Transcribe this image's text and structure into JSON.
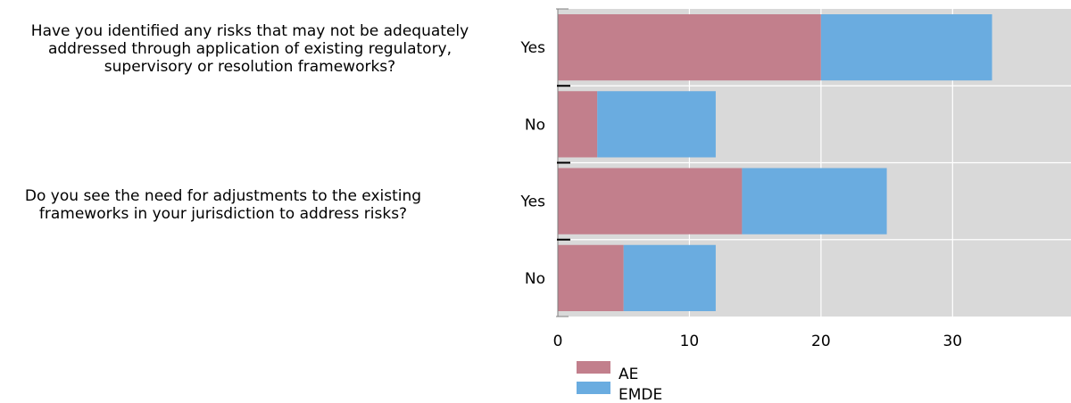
{
  "chart_data": {
    "type": "bar",
    "orientation": "horizontal",
    "stacked": true,
    "groups": [
      {
        "question_lines": [
          "Have you identified any risks that may not be adequately",
          "addressed through application of existing regulatory,",
          "supervisory or resolution frameworks?"
        ],
        "categories": [
          "Yes",
          "No"
        ]
      },
      {
        "question_lines": [
          "Do you see the need for adjustments to the existing",
          "frameworks in your jurisdiction to address risks?"
        ],
        "categories": [
          "Yes",
          "No"
        ]
      }
    ],
    "series": [
      {
        "name": "AE",
        "color": "#c27f8c",
        "values": [
          20,
          3,
          14,
          5
        ]
      },
      {
        "name": "EMDE",
        "color": "#6aace0",
        "values": [
          13,
          9,
          11,
          7
        ]
      }
    ],
    "xlim": [
      0,
      39
    ],
    "xticks": [
      0,
      10,
      20,
      30
    ],
    "grid": true,
    "plot_background": "#d9d9d9",
    "legend_position": "bottom"
  }
}
